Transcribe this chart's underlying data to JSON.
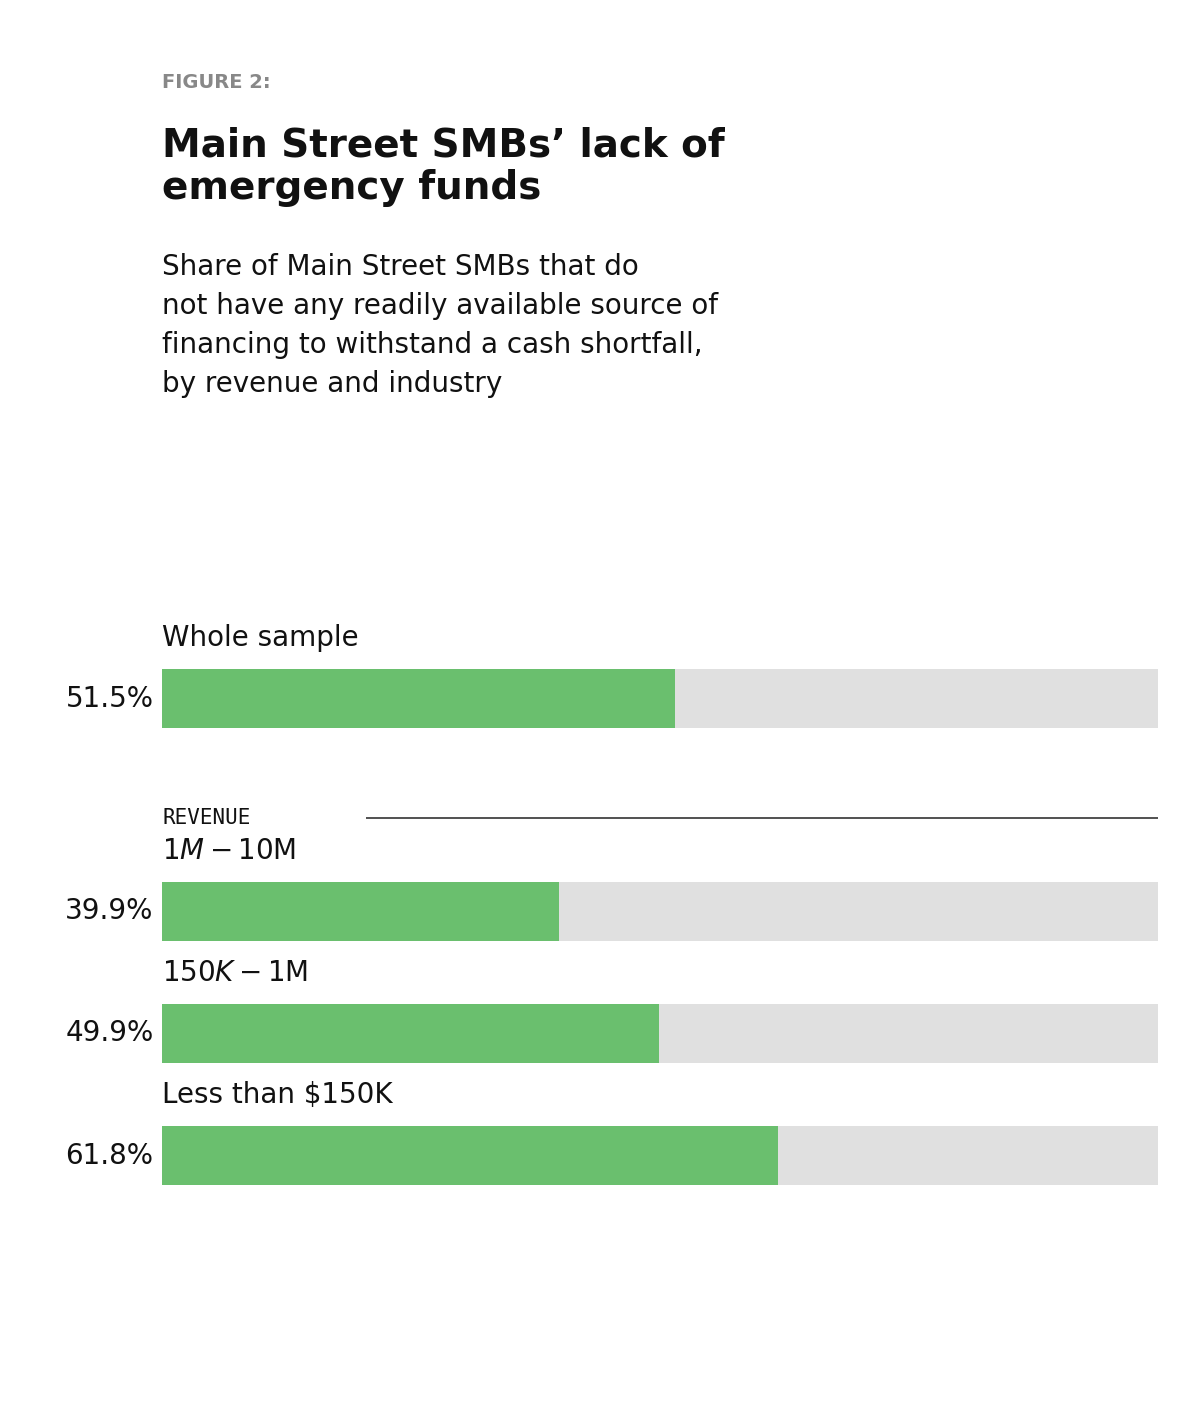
{
  "figure_label": "FIGURE 2:",
  "title": "Main Street SMBs’ lack of\nemergency funds",
  "subtitle": "Share of Main Street SMBs that do\nnot have any readily available source of\nfinancing to withstand a cash shortfall,\nby revenue and industry",
  "background_color": "#ffffff",
  "green_color": "#6abf6e",
  "gray_color": "#e0e0e0",
  "bars": [
    {
      "label": "Whole sample",
      "value": 51.5,
      "section": "whole"
    },
    {
      "label": "$1M-$10M",
      "value": 39.9,
      "section": "revenue"
    },
    {
      "label": "$150K-$1M",
      "value": 49.9,
      "section": "revenue"
    },
    {
      "label": "Less than $150K",
      "value": 61.8,
      "section": "revenue"
    }
  ],
  "max_value": 100,
  "revenue_section_label": "REVENUE",
  "figure_label_color": "#888888",
  "text_color": "#111111",
  "line_color": "#333333"
}
